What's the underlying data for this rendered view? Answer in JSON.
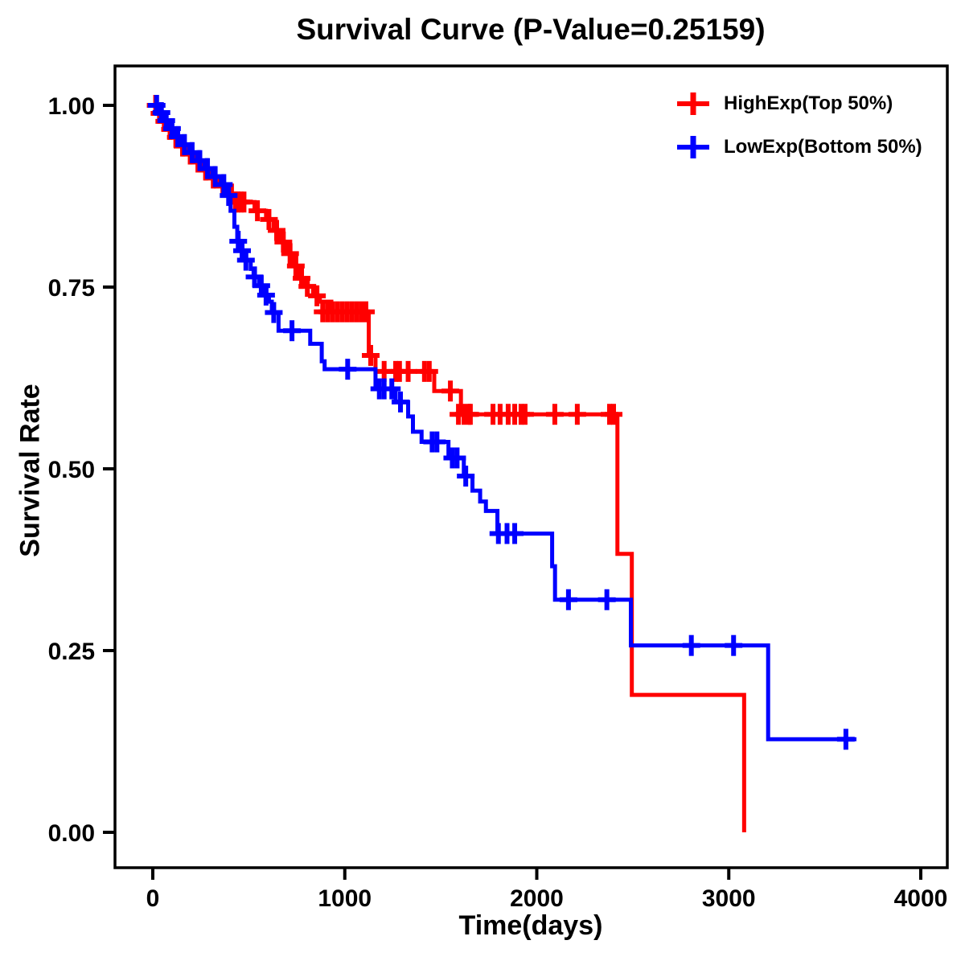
{
  "title": "Survival Curve (P-Value=0.25159)",
  "legend": {
    "items": [
      {
        "label": "HighExp(Top 50%)",
        "color": "#FF0000"
      },
      {
        "label": "LowExp(Bottom 50%)",
        "color": "#0000FF"
      }
    ]
  },
  "axes": {
    "x": {
      "label": "Time(days)",
      "tick_labels": [
        "0",
        "1000",
        "2000",
        "3000",
        "4000"
      ],
      "tick_values": [
        0,
        1000,
        2000,
        3000,
        4000
      ],
      "range": [
        0,
        4000
      ]
    },
    "y": {
      "label": "Survival Rate",
      "tick_labels": [
        "0.00",
        "0.25",
        "0.50",
        "0.75",
        "1.00"
      ],
      "tick_values": [
        0,
        0.25,
        0.5,
        0.75,
        1.0
      ],
      "range": [
        0,
        1
      ]
    }
  },
  "chart_data": {
    "type": "line",
    "subtype": "kaplan-meier-step",
    "title": "Survival Curve (P-Value=0.25159)",
    "p_value": 0.25159,
    "xlabel": "Time(days)",
    "ylabel": "Survival Rate",
    "xlim": [
      0,
      4000
    ],
    "ylim": [
      0,
      1
    ],
    "grid": false,
    "legend_position": "top-right",
    "series": [
      {
        "name": "HighExp(Top 50%)",
        "color": "#FF0000",
        "end_time": 3080,
        "steps": [
          [
            0,
            1.0
          ],
          [
            20,
            0.989
          ],
          [
            45,
            0.978
          ],
          [
            75,
            0.967
          ],
          [
            105,
            0.956
          ],
          [
            135,
            0.944
          ],
          [
            175,
            0.933
          ],
          [
            215,
            0.922
          ],
          [
            255,
            0.911
          ],
          [
            295,
            0.9
          ],
          [
            345,
            0.889
          ],
          [
            395,
            0.878
          ],
          [
            445,
            0.867
          ],
          [
            530,
            0.855
          ],
          [
            590,
            0.843
          ],
          [
            630,
            0.828
          ],
          [
            660,
            0.812
          ],
          [
            700,
            0.796
          ],
          [
            725,
            0.779
          ],
          [
            765,
            0.762
          ],
          [
            790,
            0.751
          ],
          [
            835,
            0.738
          ],
          [
            870,
            0.73
          ],
          [
            930,
            0.716
          ],
          [
            1125,
            0.656
          ],
          [
            1160,
            0.634
          ],
          [
            1466,
            0.607
          ],
          [
            1605,
            0.575
          ],
          [
            2420,
            0.383
          ],
          [
            2495,
            0.189
          ],
          [
            3080,
            0.0
          ]
        ],
        "censors": [
          [
            15,
            1.0
          ],
          [
            35,
            0.989
          ],
          [
            60,
            0.978
          ],
          [
            90,
            0.967
          ],
          [
            120,
            0.956
          ],
          [
            155,
            0.944
          ],
          [
            195,
            0.933
          ],
          [
            235,
            0.922
          ],
          [
            275,
            0.911
          ],
          [
            315,
            0.9
          ],
          [
            365,
            0.889
          ],
          [
            410,
            0.878
          ],
          [
            430,
            0.867
          ],
          [
            445,
            0.867
          ],
          [
            460,
            0.867
          ],
          [
            475,
            0.867
          ],
          [
            545,
            0.855
          ],
          [
            605,
            0.843
          ],
          [
            645,
            0.828
          ],
          [
            680,
            0.812
          ],
          [
            715,
            0.796
          ],
          [
            745,
            0.779
          ],
          [
            775,
            0.762
          ],
          [
            805,
            0.751
          ],
          [
            855,
            0.738
          ],
          [
            885,
            0.716
          ],
          [
            910,
            0.716
          ],
          [
            935,
            0.716
          ],
          [
            960,
            0.716
          ],
          [
            985,
            0.716
          ],
          [
            1010,
            0.716
          ],
          [
            1035,
            0.716
          ],
          [
            1060,
            0.716
          ],
          [
            1085,
            0.716
          ],
          [
            1110,
            0.716
          ],
          [
            1135,
            0.656
          ],
          [
            1205,
            0.634
          ],
          [
            1265,
            0.634
          ],
          [
            1285,
            0.634
          ],
          [
            1330,
            0.634
          ],
          [
            1415,
            0.634
          ],
          [
            1440,
            0.634
          ],
          [
            1550,
            0.607
          ],
          [
            1592,
            0.575
          ],
          [
            1621,
            0.575
          ],
          [
            1646,
            0.575
          ],
          [
            1654,
            0.575
          ],
          [
            1772,
            0.575
          ],
          [
            1809,
            0.575
          ],
          [
            1851,
            0.575
          ],
          [
            1885,
            0.575
          ],
          [
            1918,
            0.575
          ],
          [
            1939,
            0.575
          ],
          [
            2094,
            0.575
          ],
          [
            2211,
            0.575
          ],
          [
            2379,
            0.575
          ],
          [
            2400,
            0.575
          ]
        ]
      },
      {
        "name": "LowExp(Bottom 50%)",
        "color": "#0000FF",
        "end_time": 3665,
        "steps": [
          [
            0,
            1.0
          ],
          [
            25,
            0.99
          ],
          [
            55,
            0.979
          ],
          [
            85,
            0.968
          ],
          [
            115,
            0.957
          ],
          [
            150,
            0.946
          ],
          [
            190,
            0.935
          ],
          [
            230,
            0.924
          ],
          [
            270,
            0.913
          ],
          [
            310,
            0.902
          ],
          [
            355,
            0.891
          ],
          [
            385,
            0.876
          ],
          [
            405,
            0.855
          ],
          [
            425,
            0.833
          ],
          [
            440,
            0.813
          ],
          [
            460,
            0.8
          ],
          [
            475,
            0.787
          ],
          [
            510,
            0.775
          ],
          [
            525,
            0.764
          ],
          [
            555,
            0.752
          ],
          [
            580,
            0.739
          ],
          [
            605,
            0.73
          ],
          [
            620,
            0.715
          ],
          [
            655,
            0.69
          ],
          [
            820,
            0.672
          ],
          [
            880,
            0.648
          ],
          [
            895,
            0.637
          ],
          [
            1160,
            0.61
          ],
          [
            1265,
            0.592
          ],
          [
            1330,
            0.572
          ],
          [
            1355,
            0.551
          ],
          [
            1400,
            0.537
          ],
          [
            1540,
            0.515
          ],
          [
            1620,
            0.49
          ],
          [
            1665,
            0.47
          ],
          [
            1705,
            0.455
          ],
          [
            1735,
            0.442
          ],
          [
            1795,
            0.411
          ],
          [
            2080,
            0.366
          ],
          [
            2095,
            0.32
          ],
          [
            2490,
            0.257
          ],
          [
            3205,
            0.128
          ]
        ],
        "censors": [
          [
            20,
            1.0
          ],
          [
            45,
            0.99
          ],
          [
            70,
            0.979
          ],
          [
            100,
            0.968
          ],
          [
            130,
            0.957
          ],
          [
            165,
            0.946
          ],
          [
            205,
            0.935
          ],
          [
            245,
            0.924
          ],
          [
            285,
            0.913
          ],
          [
            325,
            0.902
          ],
          [
            370,
            0.891
          ],
          [
            395,
            0.876
          ],
          [
            445,
            0.813
          ],
          [
            465,
            0.8
          ],
          [
            485,
            0.787
          ],
          [
            530,
            0.764
          ],
          [
            565,
            0.752
          ],
          [
            590,
            0.739
          ],
          [
            630,
            0.715
          ],
          [
            725,
            0.69
          ],
          [
            1015,
            0.637
          ],
          [
            1180,
            0.61
          ],
          [
            1205,
            0.61
          ],
          [
            1245,
            0.61
          ],
          [
            1290,
            0.592
          ],
          [
            1455,
            0.537
          ],
          [
            1480,
            0.537
          ],
          [
            1560,
            0.515
          ],
          [
            1585,
            0.515
          ],
          [
            1630,
            0.49
          ],
          [
            1800,
            0.411
          ],
          [
            1845,
            0.411
          ],
          [
            1885,
            0.411
          ],
          [
            2165,
            0.32
          ],
          [
            2365,
            0.32
          ],
          [
            2805,
            0.257
          ],
          [
            3025,
            0.257
          ],
          [
            3610,
            0.128
          ]
        ]
      }
    ]
  }
}
